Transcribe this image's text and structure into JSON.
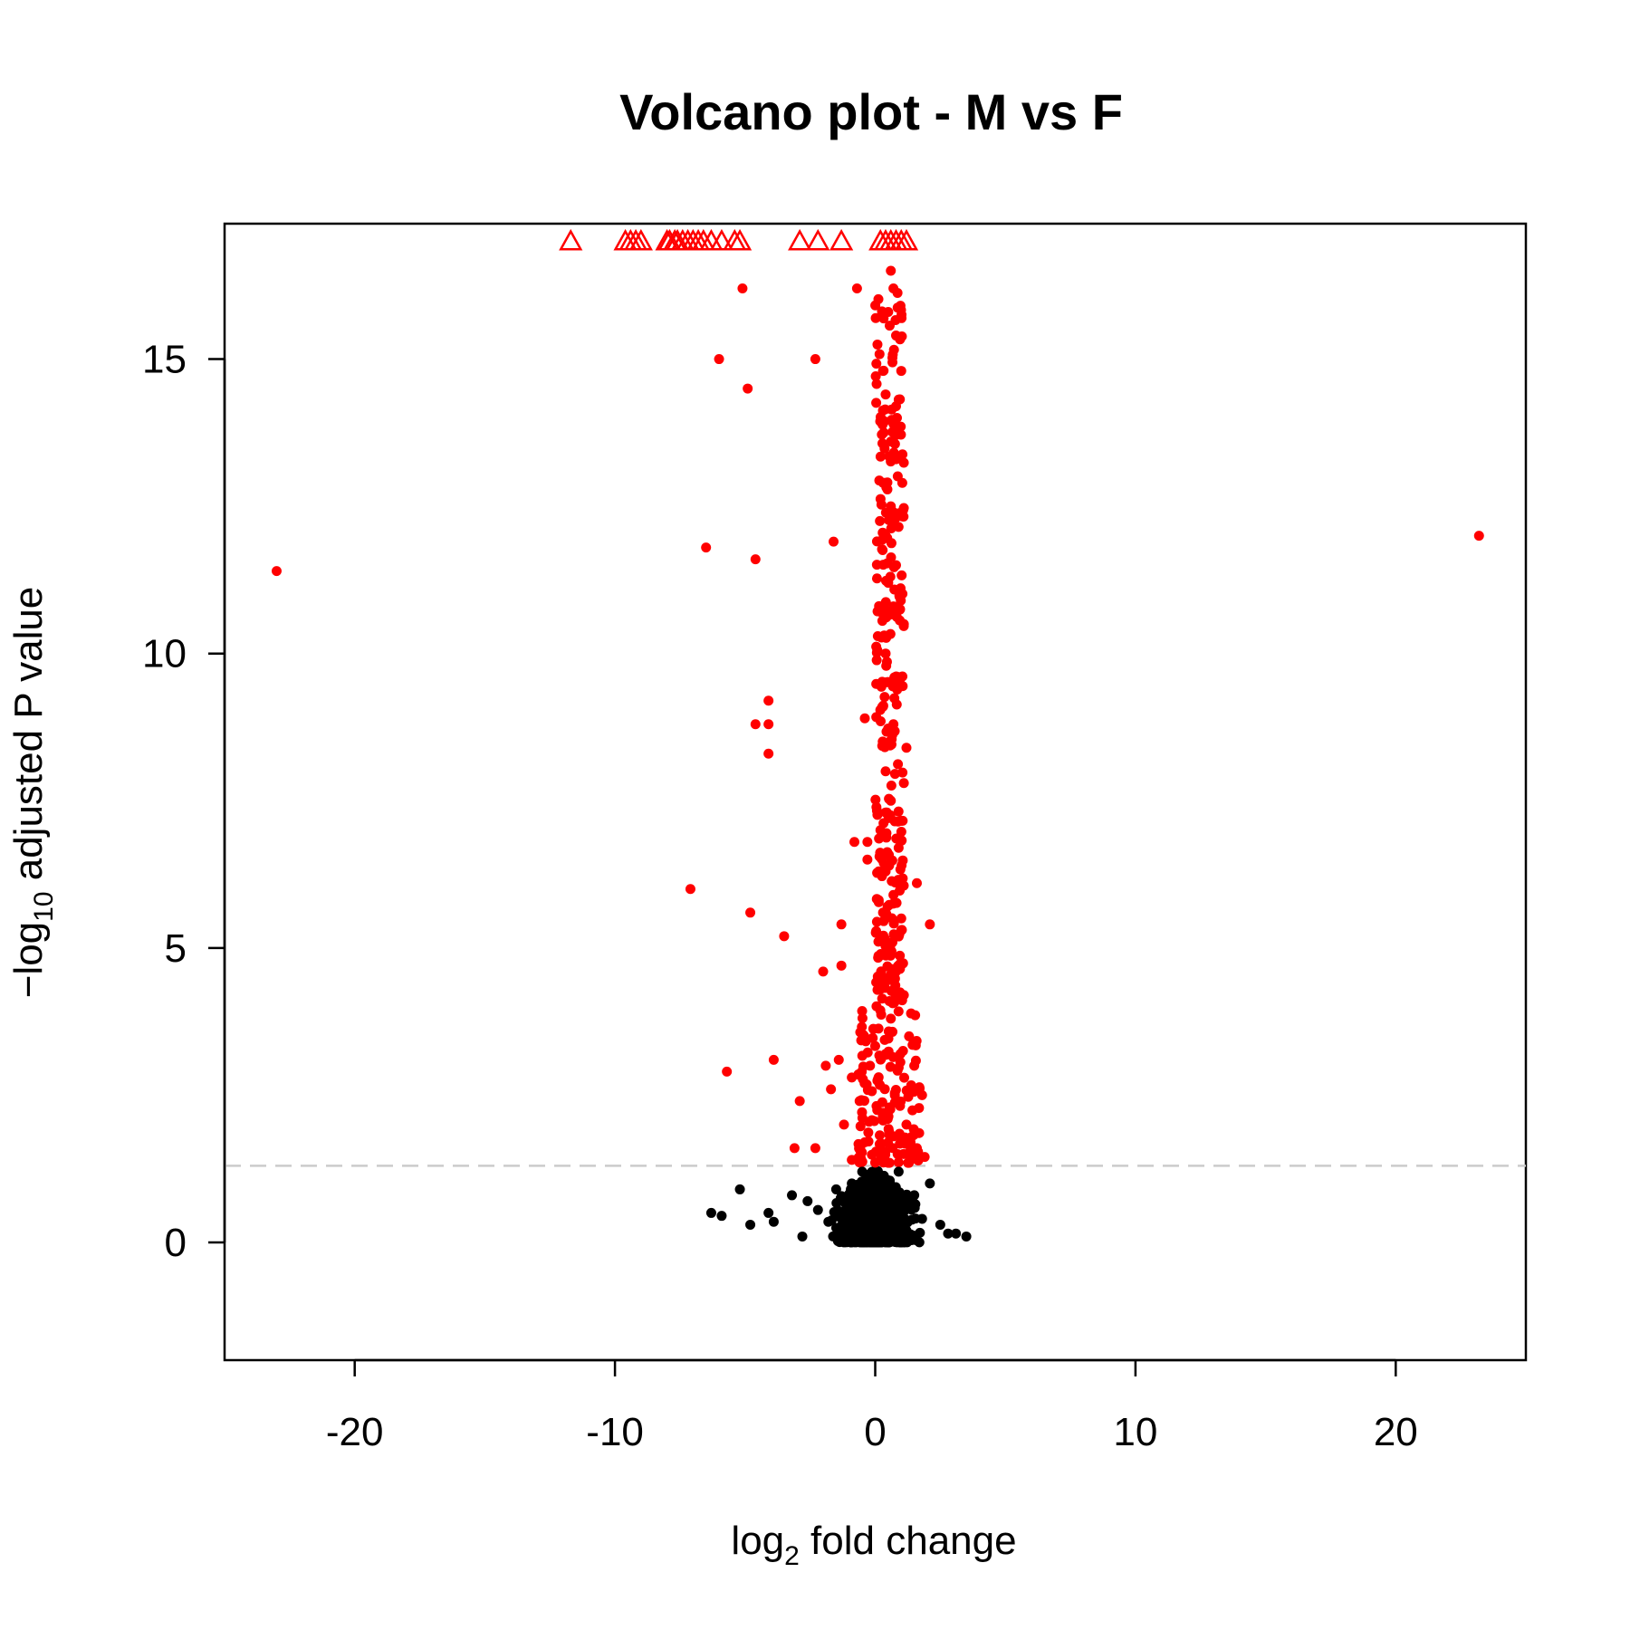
{
  "chart_data": {
    "type": "scatter",
    "title": "Volcano plot - M vs F",
    "xlabel": {
      "prefix": "log",
      "subscript": "2",
      "suffix": " fold change"
    },
    "ylabel": {
      "prefix": "−log",
      "subscript": "10",
      "suffix": " adjusted P value"
    },
    "xlim": [
      -25,
      25
    ],
    "ylim": [
      -2,
      17.3
    ],
    "xticks": [
      -20,
      -10,
      0,
      10,
      20
    ],
    "xtick_labels": [
      "-20",
      "-10",
      "0",
      "10",
      "20"
    ],
    "yticks": [
      0,
      5,
      10,
      15
    ],
    "ytick_labels": [
      "0",
      "5",
      "10",
      "15"
    ],
    "threshold_y": 1.3,
    "grid": false,
    "legend": "none",
    "colors": {
      "significant": "#ff0000",
      "nonsignificant": "#000000",
      "threshold": "#cccccc"
    },
    "series": [
      {
        "marker": "triangle",
        "color": "#ff0000",
        "points": [
          [
            -11.7,
            17
          ],
          [
            -9.6,
            17
          ],
          [
            -9.4,
            17
          ],
          [
            -9.2,
            17
          ],
          [
            -9.0,
            17
          ],
          [
            -8.0,
            17
          ],
          [
            -7.9,
            17
          ],
          [
            -7.7,
            17
          ],
          [
            -7.6,
            17
          ],
          [
            -7.4,
            17
          ],
          [
            -7.2,
            17
          ],
          [
            -7.0,
            17
          ],
          [
            -6.8,
            17
          ],
          [
            -6.6,
            17
          ],
          [
            -6.3,
            17
          ],
          [
            -5.9,
            17
          ],
          [
            -5.4,
            17
          ],
          [
            -5.2,
            17
          ],
          [
            -2.9,
            17
          ],
          [
            -2.2,
            17
          ],
          [
            -1.3,
            17
          ],
          [
            0.2,
            17
          ],
          [
            0.4,
            17
          ],
          [
            0.6,
            17
          ],
          [
            0.8,
            17
          ],
          [
            1.0,
            17
          ],
          [
            1.2,
            17
          ]
        ]
      },
      {
        "marker": "circle",
        "color": "#ff0000",
        "points": [
          [
            -23.0,
            11.4
          ],
          [
            23.2,
            12.0
          ],
          [
            -5.1,
            16.2
          ],
          [
            -0.7,
            16.2
          ],
          [
            -6.0,
            15.0
          ],
          [
            -2.3,
            15.0
          ],
          [
            -4.9,
            14.5
          ],
          [
            -6.5,
            11.8
          ],
          [
            -1.6,
            11.9
          ],
          [
            -4.6,
            11.6
          ],
          [
            -4.1,
            9.2
          ],
          [
            -4.6,
            8.8
          ],
          [
            -4.1,
            8.8
          ],
          [
            -4.1,
            8.3
          ],
          [
            -0.4,
            8.9
          ],
          [
            -7.1,
            6.0
          ],
          [
            -4.8,
            5.6
          ],
          [
            -3.5,
            5.2
          ],
          [
            -1.3,
            5.4
          ],
          [
            -2.0,
            4.6
          ],
          [
            -1.3,
            4.7
          ],
          [
            -3.9,
            3.1
          ],
          [
            -5.7,
            2.9
          ],
          [
            -2.9,
            2.4
          ],
          [
            -3.1,
            1.6
          ],
          [
            2.1,
            5.4
          ],
          [
            1.6,
            6.1
          ],
          [
            0.4,
            7.3
          ],
          [
            -0.8,
            6.8
          ],
          [
            -0.3,
            6.8
          ],
          [
            -0.3,
            6.5
          ],
          [
            0.6,
            16.5
          ],
          [
            0.7,
            16.2
          ],
          [
            0.5,
            15.8
          ],
          [
            0.8,
            15.4
          ],
          [
            0.3,
            14.8
          ],
          [
            1.0,
            14.8
          ],
          [
            0.4,
            14.4
          ],
          [
            0.8,
            14.2
          ],
          [
            0.7,
            13.9
          ],
          [
            0.6,
            13.6
          ],
          [
            0.8,
            13.3
          ],
          [
            0.3,
            12.9
          ],
          [
            0.6,
            12.5
          ],
          [
            0.4,
            12.0
          ],
          [
            0.8,
            11.5
          ],
          [
            0.5,
            11.2
          ],
          [
            0.7,
            10.8
          ],
          [
            1.1,
            10.5
          ],
          [
            0.4,
            10.0
          ],
          [
            0.9,
            9.6
          ],
          [
            0.3,
            9.1
          ],
          [
            0.7,
            8.8
          ],
          [
            1.2,
            8.4
          ],
          [
            0.4,
            8.0
          ],
          [
            1.1,
            7.8
          ],
          [
            0.6,
            7.5
          ],
          [
            0.2,
            7.0
          ],
          [
            0.9,
            6.7
          ],
          [
            0.4,
            6.3
          ],
          [
            0.7,
            5.9
          ],
          [
            0.3,
            5.6
          ],
          [
            1.0,
            5.3
          ],
          [
            0.5,
            4.9
          ],
          [
            0.8,
            4.6
          ],
          [
            0.2,
            4.3
          ],
          [
            1.1,
            4.2
          ],
          [
            0.6,
            3.8
          ],
          [
            1.3,
            3.5
          ],
          [
            0.4,
            3.2
          ],
          [
            1.5,
            3.0
          ],
          [
            -0.2,
            3.0
          ],
          [
            -1.4,
            3.1
          ],
          [
            -1.9,
            3.0
          ],
          [
            -0.9,
            2.8
          ],
          [
            -1.7,
            2.6
          ],
          [
            1.8,
            2.5
          ],
          [
            -0.6,
            2.4
          ],
          [
            0.3,
            2.2
          ],
          [
            1.2,
            2.0
          ],
          [
            -1.2,
            2.0
          ],
          [
            0.7,
            1.8
          ],
          [
            -0.4,
            1.7
          ],
          [
            1.6,
            1.6
          ],
          [
            -2.3,
            1.6
          ],
          [
            0.2,
            1.5
          ],
          [
            1.9,
            1.45
          ],
          [
            -0.9,
            1.4
          ],
          [
            0.5,
            1.35
          ]
        ]
      },
      {
        "marker": "circle",
        "color": "#000000",
        "points": [
          [
            -6.3,
            0.5
          ],
          [
            -5.9,
            0.45
          ],
          [
            -5.2,
            0.9
          ],
          [
            -4.8,
            0.3
          ],
          [
            -4.1,
            0.5
          ],
          [
            -3.9,
            0.35
          ],
          [
            -3.2,
            0.8
          ],
          [
            -2.6,
            0.7
          ],
          [
            -2.2,
            0.55
          ],
          [
            -1.8,
            0.35
          ],
          [
            -1.5,
            0.9
          ],
          [
            -1.3,
            0.25
          ],
          [
            -1.1,
            0.6
          ],
          [
            -0.9,
            1.0
          ],
          [
            -0.7,
            0.4
          ],
          [
            -0.5,
            1.2
          ],
          [
            -0.3,
            0.15
          ],
          [
            -0.1,
            0.7
          ],
          [
            0.1,
            1.1
          ],
          [
            0.3,
            0.3
          ],
          [
            0.5,
            0.9
          ],
          [
            0.7,
            0.5
          ],
          [
            0.9,
            1.2
          ],
          [
            1.2,
            0.2
          ],
          [
            1.5,
            0.8
          ],
          [
            1.8,
            0.4
          ],
          [
            2.1,
            1.0
          ],
          [
            2.5,
            0.3
          ],
          [
            2.8,
            0.15
          ],
          [
            3.1,
            0.15
          ],
          [
            -2.8,
            0.1
          ],
          [
            3.5,
            0.1
          ]
        ]
      }
    ]
  }
}
